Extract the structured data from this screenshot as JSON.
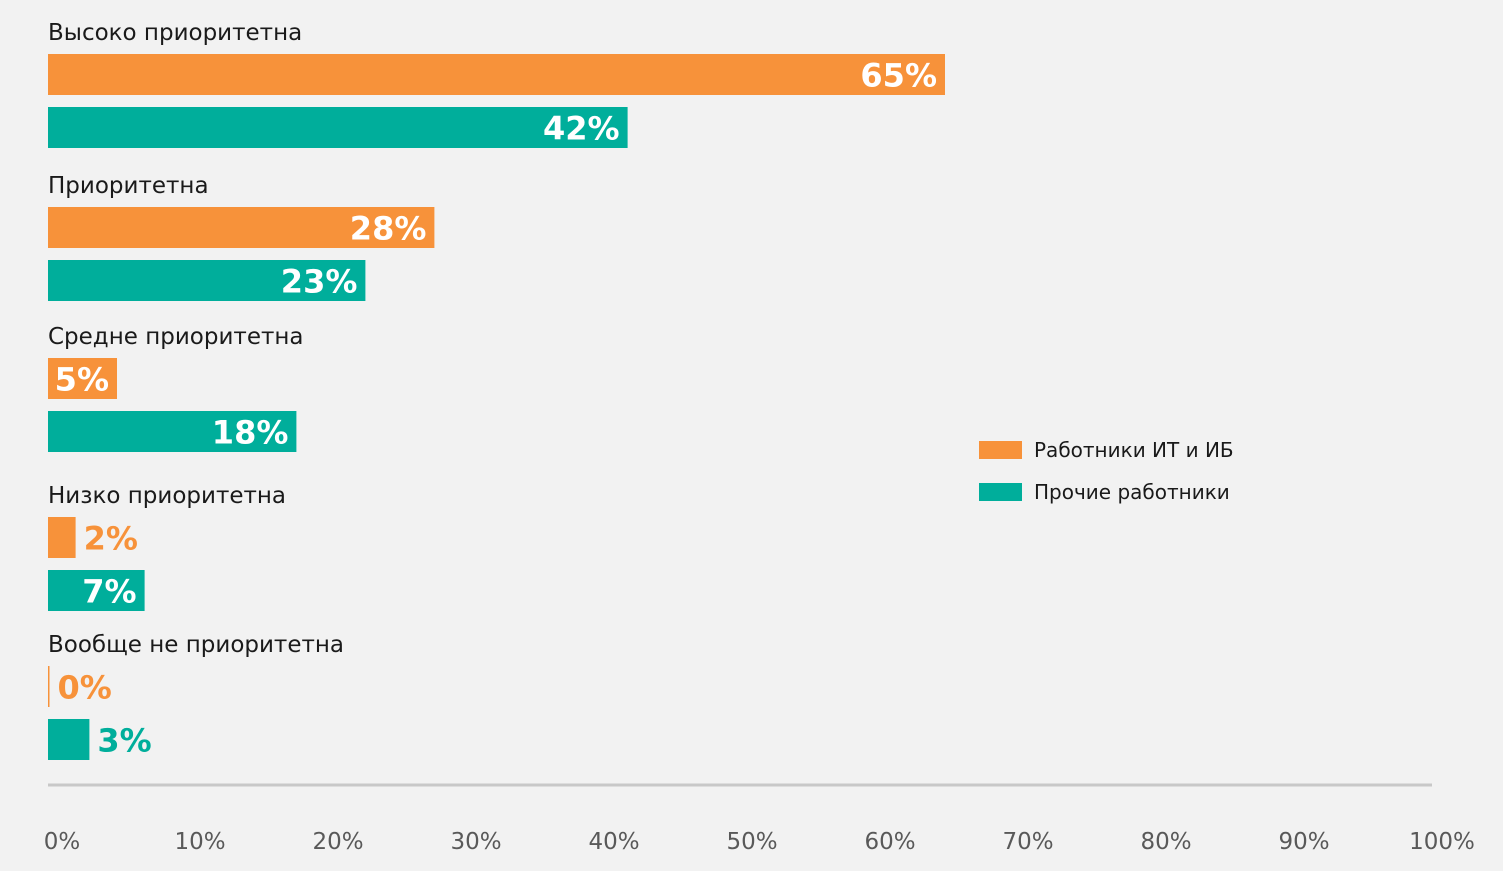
{
  "chart_data": {
    "type": "bar",
    "orientation": "horizontal",
    "categories": [
      "Высоко приоритетна",
      "Приоритетна",
      "Средне приоритетна",
      "Низко приоритетна",
      "Вообще не приоритетна"
    ],
    "series": [
      {
        "name": "Работники ИТ и ИБ",
        "color": "#f7923a",
        "values": [
          65,
          28,
          5,
          2,
          0
        ],
        "labels": [
          "65%",
          "28%",
          "5%",
          "2%",
          "0%"
        ]
      },
      {
        "name": "Прочие работники",
        "color": "#00ae9b",
        "values": [
          42,
          23,
          18,
          7,
          3
        ],
        "labels": [
          "42%",
          "23%",
          "18%",
          "7%",
          "3%"
        ]
      }
    ],
    "xlim": [
      0,
      100
    ],
    "x_ticks": [
      "0%",
      "10%",
      "20%",
      "30%",
      "40%",
      "50%",
      "60%",
      "70%",
      "80%",
      "90%",
      "100%"
    ],
    "title": "",
    "xlabel": "",
    "ylabel": "",
    "grid": false,
    "legend_position": "right"
  }
}
